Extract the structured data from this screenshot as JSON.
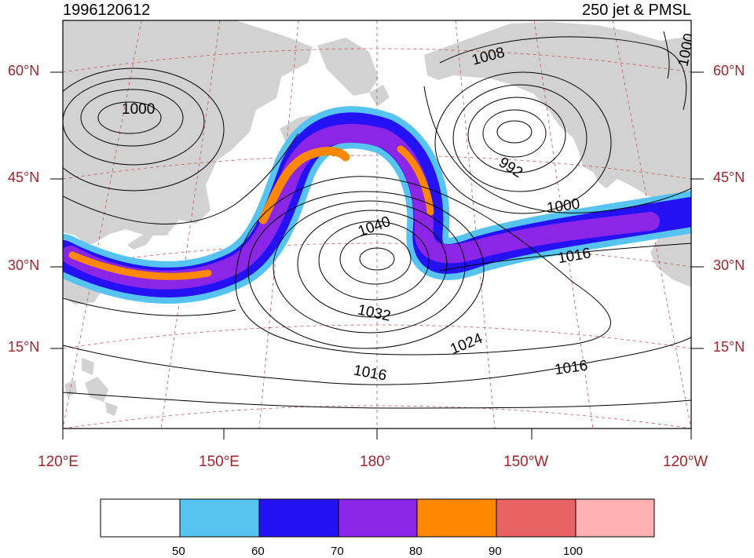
{
  "header": {
    "date": "1996120612",
    "title": "250 jet & PMSL"
  },
  "axes": {
    "lat_labels": [
      "60°N",
      "45°N",
      "30°N",
      "15°N"
    ],
    "lon_labels": [
      "120°E",
      "150°E",
      "180°",
      "150°W",
      "120°W"
    ]
  },
  "isobars": {
    "labels": [
      "1000",
      "1008",
      "1000",
      "992",
      "1000",
      "1040",
      "1016",
      "1032",
      "1024",
      "1016",
      "1016"
    ]
  },
  "colorbar": {
    "labels": [
      "50",
      "60",
      "70",
      "80",
      "90",
      "100"
    ],
    "colors": [
      "#ffffff",
      "#56c3f0",
      "#2412f5",
      "#8b26e6",
      "#ff8800",
      "#e86464",
      "#ffb1b1"
    ]
  },
  "colors": {
    "land": "#d2d2d2",
    "grid": "#c8545c",
    "label": "#a3232a"
  }
}
